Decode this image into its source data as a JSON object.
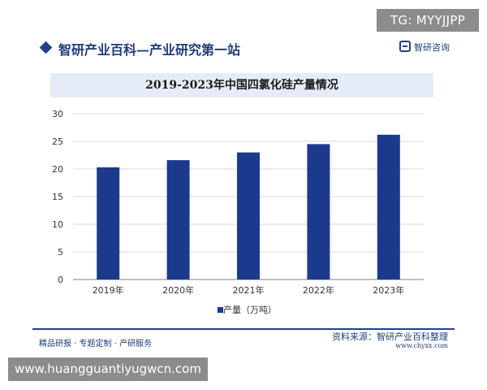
{
  "badge_text": "TG: MYYJJPP",
  "header": {
    "title": "智研产业百科—产业研究第一站",
    "brand": "智研咨询"
  },
  "chart_data": {
    "type": "bar",
    "title": "2019-2023年中国四氯化硅产量情况",
    "categories": [
      "2019年",
      "2020年",
      "2021年",
      "2022年",
      "2023年"
    ],
    "series": [
      {
        "name": "产量（万吨）",
        "values": [
          20.3,
          21.6,
          23.0,
          24.5,
          26.2
        ],
        "color": "#1c3a8c"
      }
    ],
    "xlabel": "",
    "ylabel": "",
    "ylim": [
      0,
      30
    ],
    "yticks": [
      0,
      5,
      10,
      15,
      20,
      25,
      30
    ],
    "grid": true,
    "legend_position": "bottom-center"
  },
  "footer": {
    "left_text": "精品研报 · 专题定制 · 产研服务",
    "source_text": "资料来源：智研产业百科整理",
    "url_text": "www.chyxx.com"
  },
  "watermark_text": "www.huangguantiyugwcn.com",
  "colors": {
    "brand_blue": "#1f3f8f",
    "bar_blue": "#1c3a8c",
    "title_band": "#e6ecf7",
    "badge_gray": "#8c8c8c"
  }
}
